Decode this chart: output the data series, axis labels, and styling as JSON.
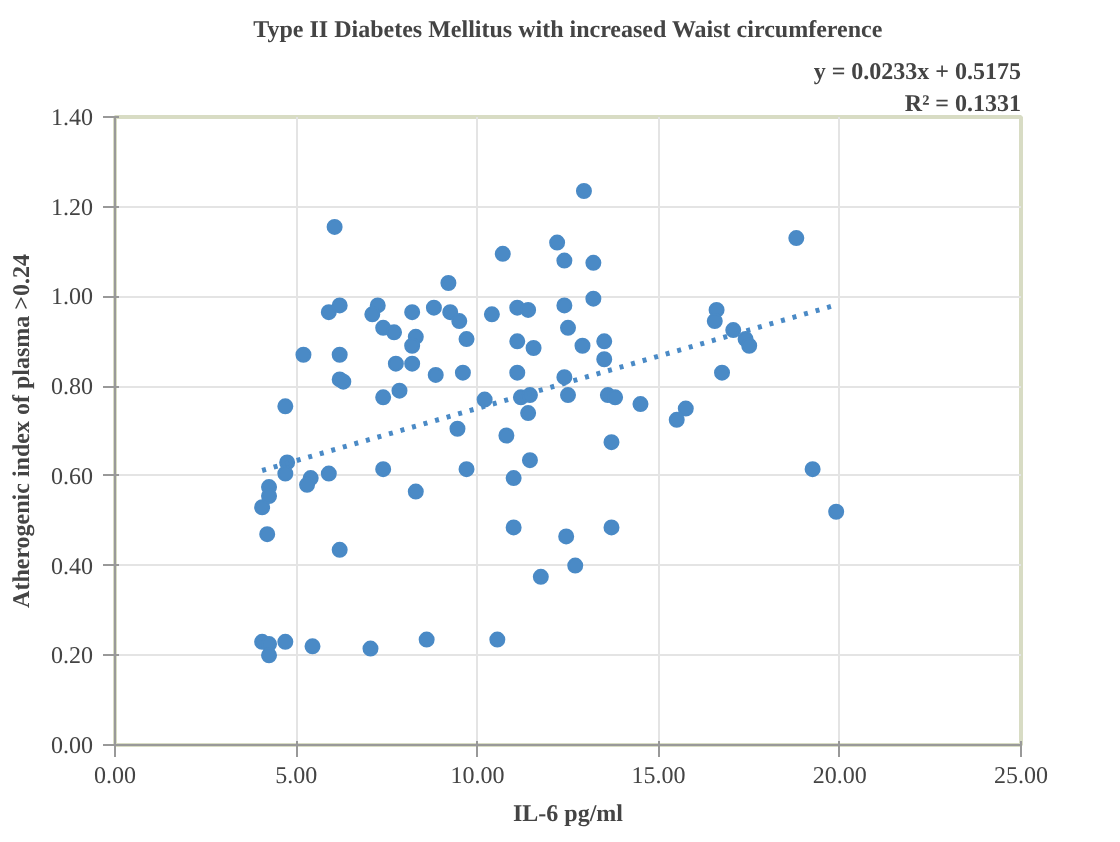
{
  "chart_data": {
    "type": "scatter",
    "title": "Type II Diabetes Mellitus with increased Waist circumference",
    "xlabel": "IL-6 pg/ml",
    "ylabel": "Atherogenic index of plasma >0.24",
    "annotations": [
      "y = 0.0233x + 0.5175",
      "R² = 0.1331"
    ],
    "xlim": [
      0,
      25
    ],
    "ylim": [
      0,
      1.4
    ],
    "xticks": [
      {
        "value": 0,
        "label": "0.00"
      },
      {
        "value": 5,
        "label": "5.00"
      },
      {
        "value": 10,
        "label": "10.00"
      },
      {
        "value": 15,
        "label": "15.00"
      },
      {
        "value": 20,
        "label": "20.00"
      },
      {
        "value": 25,
        "label": "25.00"
      }
    ],
    "yticks": [
      {
        "value": 0,
        "label": "0.00"
      },
      {
        "value": 0.2,
        "label": "0.20"
      },
      {
        "value": 0.4,
        "label": "0.40"
      },
      {
        "value": 0.6,
        "label": "0.60"
      },
      {
        "value": 0.8,
        "label": "0.80"
      },
      {
        "value": 1.0,
        "label": "1.00"
      },
      {
        "value": 1.2,
        "label": "1.20"
      },
      {
        "value": 1.4,
        "label": "1.40"
      }
    ],
    "grid": true,
    "series": [
      {
        "marker": "circle",
        "color": "#4a8ac6",
        "x": [
          6.06,
          12.94,
          18.8,
          12.2,
          12.4,
          13.2,
          13.2,
          12.4,
          12.5,
          12.9,
          13.5,
          13.5,
          12.4,
          12.5,
          13.6,
          13.8,
          14.5,
          15.75,
          15.5,
          13.7,
          16.6,
          16.55,
          17.06,
          17.4,
          17.5,
          16.75,
          19.25,
          19.9,
          12.45,
          13.7,
          12.7,
          11.75,
          10.7,
          9.2,
          5.9,
          6.2,
          7.25,
          7.1,
          8.2,
          8.8,
          9.25,
          9.5,
          10.4,
          11.1,
          11.4,
          7.4,
          7.7,
          8.3,
          8.2,
          9.7,
          11.1,
          11.55,
          5.2,
          6.2,
          7.75,
          8.2,
          8.85,
          9.6,
          11.1,
          6.2,
          6.3,
          4.7,
          7.4,
          7.85,
          10.2,
          11.2,
          11.45,
          11.4,
          9.45,
          10.8,
          4.06,
          4.25,
          4.25,
          4.75,
          4.7,
          5.4,
          5.3,
          5.9,
          7.4,
          8.3,
          9.7,
          11.45,
          11.0,
          4.2,
          6.2,
          11.0,
          4.06,
          4.25,
          4.25,
          4.7,
          5.45,
          7.05,
          8.6,
          10.55
        ],
        "values": [
          1.155,
          1.235,
          1.13,
          1.12,
          1.08,
          1.075,
          0.995,
          0.98,
          0.93,
          0.89,
          0.9,
          0.86,
          0.82,
          0.78,
          0.78,
          0.775,
          0.76,
          0.75,
          0.725,
          0.675,
          0.97,
          0.945,
          0.925,
          0.905,
          0.89,
          0.83,
          0.615,
          0.52,
          0.465,
          0.485,
          0.4,
          0.375,
          1.095,
          1.03,
          0.965,
          0.98,
          0.98,
          0.96,
          0.965,
          0.975,
          0.965,
          0.945,
          0.96,
          0.975,
          0.97,
          0.93,
          0.92,
          0.91,
          0.89,
          0.905,
          0.9,
          0.885,
          0.87,
          0.87,
          0.85,
          0.85,
          0.825,
          0.83,
          0.83,
          0.815,
          0.81,
          0.755,
          0.775,
          0.79,
          0.77,
          0.775,
          0.78,
          0.74,
          0.705,
          0.69,
          0.53,
          0.575,
          0.555,
          0.63,
          0.605,
          0.595,
          0.58,
          0.605,
          0.615,
          0.565,
          0.615,
          0.635,
          0.595,
          0.47,
          0.435,
          0.485,
          0.23,
          0.225,
          0.2,
          0.23,
          0.22,
          0.215,
          0.235,
          0.235
        ]
      },
      {
        "type": "line",
        "color": "#4a8ac6",
        "line_style": "dotted",
        "x": [
          4.06,
          19.9
        ],
        "values": [
          0.612,
          0.981
        ]
      }
    ]
  }
}
